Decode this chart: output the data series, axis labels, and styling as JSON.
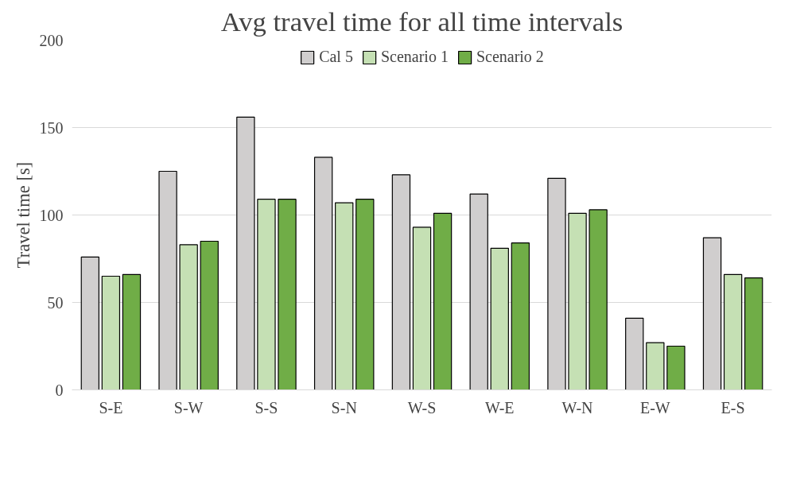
{
  "chart_data": {
    "type": "bar",
    "title": "Avg travel time for all time intervals",
    "ylabel": "Travel time [s]",
    "categories": [
      "S-E",
      "S-W",
      "S-S",
      "S-N",
      "W-S",
      "W-E",
      "W-N",
      "E-W",
      "E-S"
    ],
    "series": [
      {
        "name": "Cal 5",
        "color": "#d0cece",
        "values": [
          76,
          125,
          156,
          133,
          123,
          112,
          121,
          41,
          87
        ]
      },
      {
        "name": "Scenario 1",
        "color": "#c5e0b4",
        "values": [
          65,
          83,
          109,
          107,
          93,
          81,
          101,
          27,
          66
        ]
      },
      {
        "name": "Scenario 2",
        "color": "#70ad47",
        "values": [
          66,
          85,
          109,
          109,
          101,
          84,
          103,
          25,
          64
        ]
      }
    ],
    "ylim": [
      0,
      200
    ],
    "yticks": [
      0,
      50,
      100,
      150,
      200
    ],
    "grid": "y",
    "legend": "top"
  }
}
